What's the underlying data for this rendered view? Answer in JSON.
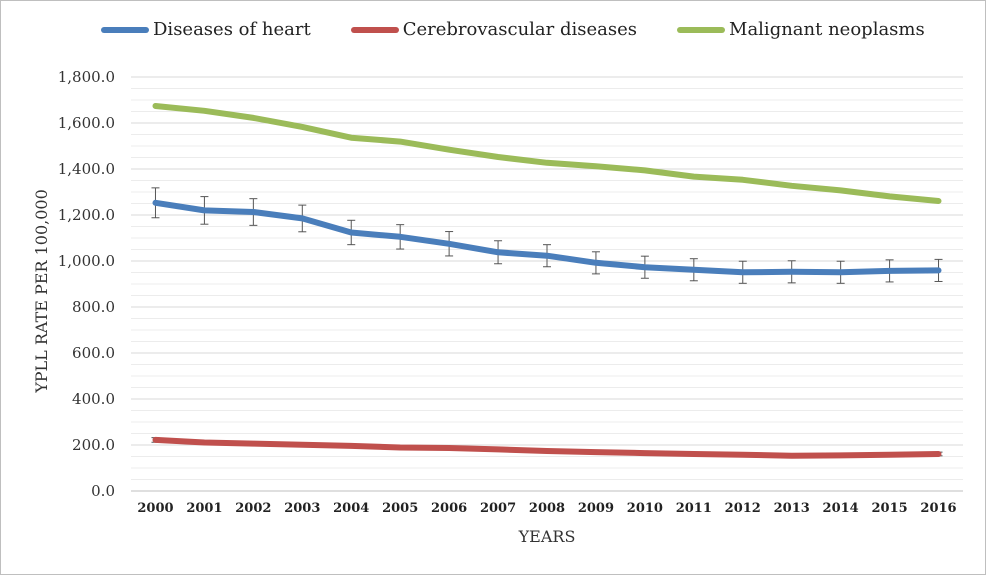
{
  "chart_data": {
    "type": "line",
    "title": "",
    "xlabel": "YEARS",
    "ylabel": "YPLL RATE PER 100,000",
    "ylim": [
      0,
      1800
    ],
    "y_ticks": [
      "0.0",
      "200.0",
      "400.0",
      "600.0",
      "800.0",
      "1,000.0",
      "1,200.0",
      "1,400.0",
      "1,600.0",
      "1,800.0"
    ],
    "y_tick_values": [
      0,
      200,
      400,
      600,
      800,
      1000,
      1200,
      1400,
      1600,
      1800
    ],
    "grid": true,
    "legend_position": "top",
    "categories": [
      "2000",
      "2001",
      "2002",
      "2003",
      "2004",
      "2005",
      "2006",
      "2007",
      "2008",
      "2009",
      "2010",
      "2011",
      "2012",
      "2013",
      "2014",
      "2015",
      "2016"
    ],
    "series": [
      {
        "name": "Diseases of heart",
        "color": "#4a7ebb",
        "values": [
          1253,
          1220,
          1213,
          1185,
          1124,
          1105,
          1075,
          1038,
          1023,
          992,
          973,
          962,
          951,
          953,
          951,
          957,
          959
        ],
        "error": [
          65,
          60,
          58,
          58,
          53,
          53,
          53,
          50,
          48,
          48,
          48,
          48,
          48,
          48,
          48,
          48,
          48
        ]
      },
      {
        "name": "Cerebrovascular diseases",
        "color": "#c0504d",
        "values": [
          222,
          211,
          206,
          201,
          196,
          189,
          187,
          181,
          174,
          169,
          165,
          161,
          158,
          153,
          155,
          158,
          161
        ],
        "error": [
          10,
          0,
          0,
          0,
          0,
          0,
          0,
          0,
          0,
          0,
          0,
          0,
          0,
          0,
          0,
          0,
          8
        ]
      },
      {
        "name": "Malignant neoplasms",
        "color": "#9bbb59",
        "values": [
          1674,
          1653,
          1622,
          1583,
          1536,
          1519,
          1484,
          1452,
          1427,
          1412,
          1394,
          1367,
          1353,
          1327,
          1307,
          1281,
          1261
        ],
        "error": []
      }
    ]
  }
}
